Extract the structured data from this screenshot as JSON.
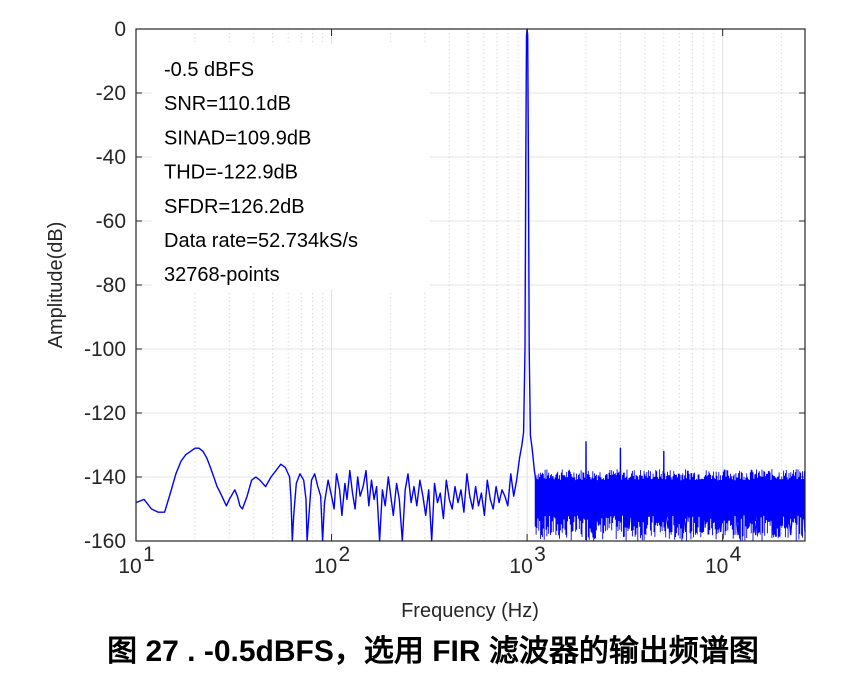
{
  "caption": "图 27 . -0.5dBFS，选用 FIR 滤波器的输出频谱图",
  "chart_data": {
    "type": "line",
    "xlabel": "Frequency (Hz)",
    "ylabel": "Amplitude(dB)",
    "xscale": "log",
    "xlim": [
      10,
      26367
    ],
    "ylim": [
      -160,
      0
    ],
    "grid": true,
    "line_color": "#0000ff",
    "yticks": [
      0,
      -20,
      -40,
      -60,
      -80,
      -100,
      -120,
      -140,
      -160
    ],
    "ytick_labels": [
      "0",
      "-20",
      "-40",
      "-60",
      "-80",
      "-100",
      "-120",
      "-140",
      "-160"
    ],
    "xticks": [
      10,
      100,
      1000,
      10000
    ],
    "xtick_labels": [
      {
        "base": "10",
        "exp": "1"
      },
      {
        "base": "10",
        "exp": "2"
      },
      {
        "base": "10",
        "exp": "3"
      },
      {
        "base": "10",
        "exp": "4"
      }
    ],
    "annotations": [
      "-0.5 dBFS",
      "SNR=110.1dB",
      "SINAD=109.9dB",
      "THD=-122.9dB",
      "SFDR=126.2dB",
      "Data rate=52.734kS/s",
      "32768-points"
    ],
    "series": [
      {
        "points": [
          [
            10,
            -148
          ],
          [
            11,
            -147
          ],
          [
            12,
            -150
          ],
          [
            13,
            -151
          ],
          [
            14,
            -151
          ],
          [
            15,
            -145
          ],
          [
            16,
            -139
          ],
          [
            17,
            -135
          ],
          [
            18,
            -133
          ],
          [
            19,
            -132
          ],
          [
            20,
            -131
          ],
          [
            21,
            -131
          ],
          [
            22,
            -132
          ],
          [
            23,
            -134
          ],
          [
            24,
            -137
          ],
          [
            25,
            -140
          ],
          [
            26,
            -143
          ],
          [
            27,
            -145
          ],
          [
            28,
            -147
          ],
          [
            29,
            -149
          ],
          [
            30,
            -147
          ],
          [
            32,
            -144
          ],
          [
            33,
            -146
          ],
          [
            34,
            -149
          ],
          [
            35,
            -150
          ],
          [
            37,
            -146
          ],
          [
            39,
            -141
          ],
          [
            41,
            -140
          ],
          [
            43,
            -141
          ],
          [
            46,
            -143
          ],
          [
            49,
            -140
          ],
          [
            52,
            -138
          ],
          [
            55,
            -136
          ],
          [
            58,
            -137
          ],
          [
            61,
            -140
          ],
          [
            62,
            -147
          ],
          [
            63,
            -160
          ],
          [
            64,
            -152
          ],
          [
            66,
            -142
          ],
          [
            69,
            -139
          ],
          [
            72,
            -141
          ],
          [
            74,
            -147
          ],
          [
            75,
            -160
          ],
          [
            77,
            -150
          ],
          [
            79,
            -141
          ],
          [
            82,
            -139
          ],
          [
            85,
            -143
          ],
          [
            88,
            -146
          ],
          [
            90,
            -160
          ],
          [
            92,
            -148
          ],
          [
            96,
            -141
          ],
          [
            100,
            -146
          ],
          [
            103,
            -150
          ],
          [
            106,
            -139
          ],
          [
            110,
            -144
          ],
          [
            113,
            -152
          ],
          [
            117,
            -142
          ],
          [
            120,
            -147
          ],
          [
            124,
            -138
          ],
          [
            128,
            -145
          ],
          [
            132,
            -150
          ],
          [
            136,
            -140
          ],
          [
            140,
            -146
          ],
          [
            145,
            -143
          ],
          [
            150,
            -138
          ],
          [
            155,
            -149
          ],
          [
            160,
            -141
          ],
          [
            165,
            -147
          ],
          [
            170,
            -143
          ],
          [
            176,
            -160
          ],
          [
            182,
            -144
          ],
          [
            188,
            -149
          ],
          [
            195,
            -140
          ],
          [
            200,
            -145
          ],
          [
            207,
            -152
          ],
          [
            215,
            -142
          ],
          [
            222,
            -147
          ],
          [
            230,
            -160
          ],
          [
            238,
            -144
          ],
          [
            246,
            -139
          ],
          [
            255,
            -148
          ],
          [
            264,
            -143
          ],
          [
            273,
            -149
          ],
          [
            283,
            -141
          ],
          [
            293,
            -146
          ],
          [
            303,
            -152
          ],
          [
            314,
            -144
          ],
          [
            325,
            -160
          ],
          [
            336,
            -142
          ],
          [
            348,
            -148
          ],
          [
            360,
            -145
          ],
          [
            373,
            -153
          ],
          [
            386,
            -141
          ],
          [
            400,
            -147
          ],
          [
            414,
            -150
          ],
          [
            428,
            -143
          ],
          [
            443,
            -148
          ],
          [
            459,
            -144
          ],
          [
            475,
            -151
          ],
          [
            492,
            -139
          ],
          [
            509,
            -146
          ],
          [
            527,
            -150
          ],
          [
            545,
            -143
          ],
          [
            564,
            -149
          ],
          [
            584,
            -145
          ],
          [
            605,
            -152
          ],
          [
            626,
            -141
          ],
          [
            648,
            -147
          ],
          [
            671,
            -150
          ],
          [
            694,
            -143
          ],
          [
            719,
            -148
          ],
          [
            744,
            -144
          ],
          [
            770,
            -146
          ],
          [
            797,
            -149
          ],
          [
            825,
            -139
          ],
          [
            854,
            -146
          ],
          [
            884,
            -141
          ],
          [
            915,
            -134
          ],
          [
            940,
            -130
          ],
          [
            960,
            -126
          ],
          [
            975,
            -100
          ],
          [
            985,
            -40
          ],
          [
            993,
            -2
          ],
          [
            1000,
            0
          ],
          [
            1007,
            -2
          ],
          [
            1015,
            -40
          ],
          [
            1025,
            -100
          ],
          [
            1040,
            -127
          ],
          [
            1060,
            -131
          ],
          [
            1090,
            -138
          ],
          [
            1120,
            -143
          ],
          [
            1160,
            -150
          ],
          [
            1200,
            -141
          ],
          [
            1250,
            -145
          ],
          [
            1300,
            -152
          ],
          [
            1350,
            -140
          ],
          [
            1400,
            -147
          ],
          [
            1470,
            -153
          ],
          [
            1540,
            -142
          ],
          [
            1610,
            -149
          ],
          [
            1690,
            -144
          ],
          [
            1770,
            -152
          ],
          [
            1860,
            -141
          ],
          [
            1950,
            -148
          ],
          [
            1995,
            -146
          ],
          [
            2000,
            -129
          ],
          [
            2005,
            -146
          ],
          [
            2100,
            -150
          ],
          [
            2200,
            -143
          ],
          [
            2320,
            -155
          ],
          [
            2440,
            -141
          ],
          [
            2560,
            -149
          ],
          [
            2700,
            -144
          ],
          [
            2840,
            -153
          ],
          [
            2995,
            -146
          ],
          [
            3000,
            -131
          ],
          [
            3005,
            -146
          ],
          [
            3150,
            -142
          ],
          [
            3320,
            -156
          ],
          [
            3500,
            -140
          ],
          [
            3680,
            -150
          ],
          [
            3880,
            -143
          ],
          [
            4080,
            -155
          ],
          [
            4300,
            -141
          ],
          [
            4530,
            -149
          ],
          [
            4770,
            -143
          ],
          [
            4995,
            -146
          ],
          [
            5000,
            -132
          ],
          [
            5005,
            -146
          ],
          [
            5260,
            -156
          ],
          [
            5540,
            -141
          ],
          [
            5830,
            -150
          ],
          [
            6140,
            -144
          ],
          [
            6470,
            -157
          ],
          [
            6810,
            -141
          ],
          [
            7170,
            -151
          ],
          [
            7550,
            -143
          ],
          [
            7950,
            -157
          ],
          [
            8370,
            -141
          ],
          [
            8810,
            -150
          ],
          [
            9280,
            -144
          ],
          [
            9770,
            -157
          ],
          [
            10290,
            -141
          ],
          [
            10830,
            -152
          ],
          [
            11400,
            -143
          ],
          [
            12000,
            -158
          ],
          [
            12640,
            -141
          ],
          [
            13310,
            -151
          ],
          [
            14010,
            -144
          ],
          [
            14750,
            -158
          ],
          [
            15530,
            -141
          ],
          [
            16350,
            -152
          ],
          [
            17220,
            -143
          ],
          [
            18130,
            -158
          ],
          [
            19090,
            -141
          ],
          [
            20100,
            -151
          ],
          [
            21160,
            -144
          ],
          [
            22280,
            -158
          ],
          [
            23460,
            -141
          ],
          [
            24700,
            -152
          ],
          [
            25500,
            -143
          ],
          [
            26367,
            -157
          ]
        ],
        "noise_floor": {
          "from_hz": 1100,
          "to_hz": 26367,
          "upper_db": -140,
          "lower_db": -160
        }
      }
    ]
  }
}
